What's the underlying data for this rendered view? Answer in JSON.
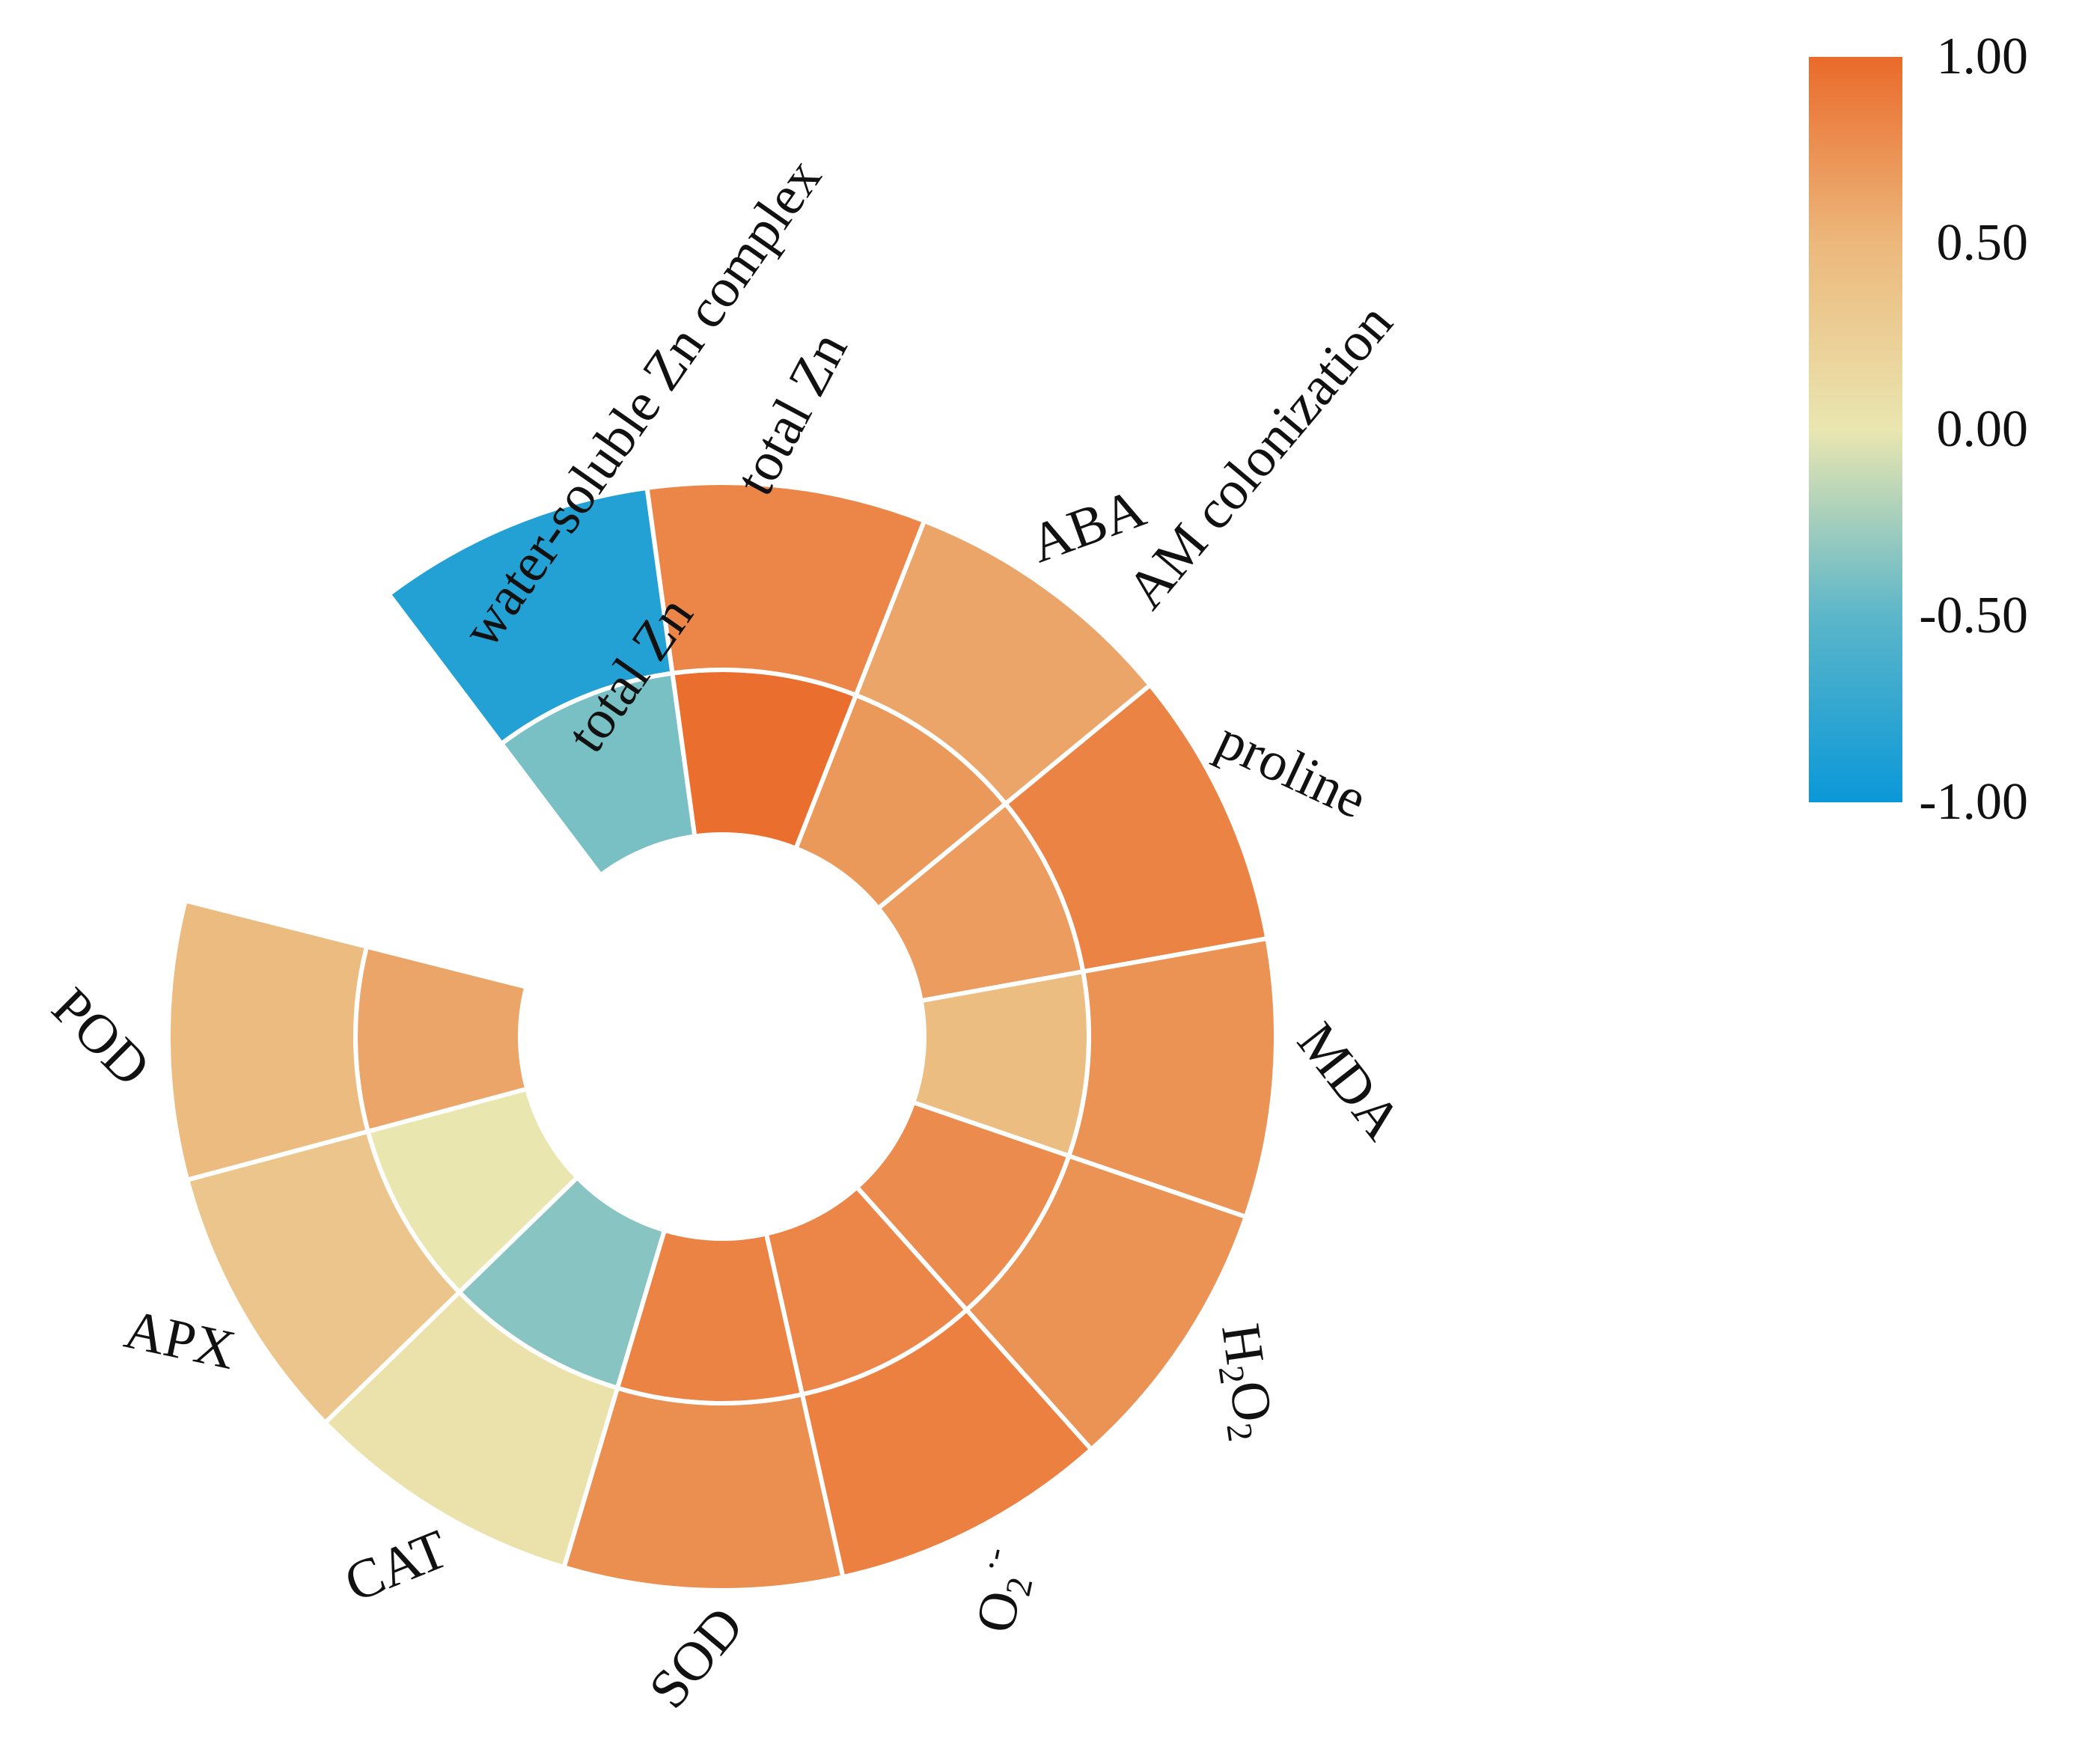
{
  "chart_data": {
    "type": "heatmap",
    "layout": "circular",
    "title": "",
    "rings": [
      {
        "name": "water-soluble Zn complex",
        "position": "inner"
      },
      {
        "name": "total Zn",
        "position": "outer"
      }
    ],
    "outer_axis_title": "AM colonization",
    "categories": [
      "total Zn",
      "ABA",
      "proline",
      "MDA",
      "H2O2",
      "O2·-",
      "SOD",
      "CAT",
      "APX",
      "POD"
    ],
    "category_labels": [
      {
        "base": "total Zn",
        "sub": "",
        "sup": ""
      },
      {
        "base": "ABA",
        "sub": "",
        "sup": ""
      },
      {
        "base": "proline",
        "sub": "",
        "sup": ""
      },
      {
        "base": "MDA",
        "sub": "",
        "sup": ""
      },
      {
        "base": "H",
        "mid": "O",
        "sub": "2",
        "sub2": "2",
        "sup": ""
      },
      {
        "base": "O",
        "sub": "2",
        "sup": "·-"
      },
      {
        "base": "SOD",
        "sub": "",
        "sup": ""
      },
      {
        "base": "CAT",
        "sub": "",
        "sup": ""
      },
      {
        "base": "APX",
        "sub": "",
        "sup": ""
      },
      {
        "base": "POD",
        "sub": "",
        "sup": ""
      }
    ],
    "first_column": {
      "label": "AM colonization",
      "inner_value": -0.4,
      "outer_value": -0.85
    },
    "values_inner": [
      0.97,
      0.7,
      0.68,
      0.45,
      0.78,
      0.82,
      0.84,
      -0.35,
      0.0,
      0.62
    ],
    "values_outer": [
      0.82,
      0.62,
      0.84,
      0.74,
      0.74,
      0.86,
      0.76,
      0.05,
      0.36,
      0.47
    ],
    "colorbar": {
      "min": -1.0,
      "max": 1.0,
      "ticks": [
        "1.00",
        "0.50",
        "0.00",
        "-0.50",
        "-1.00"
      ],
      "colors": [
        "#0a98d8",
        "#5cb6c9",
        "#eae6b0",
        "#ecb87c",
        "#ea6a2a"
      ]
    }
  }
}
